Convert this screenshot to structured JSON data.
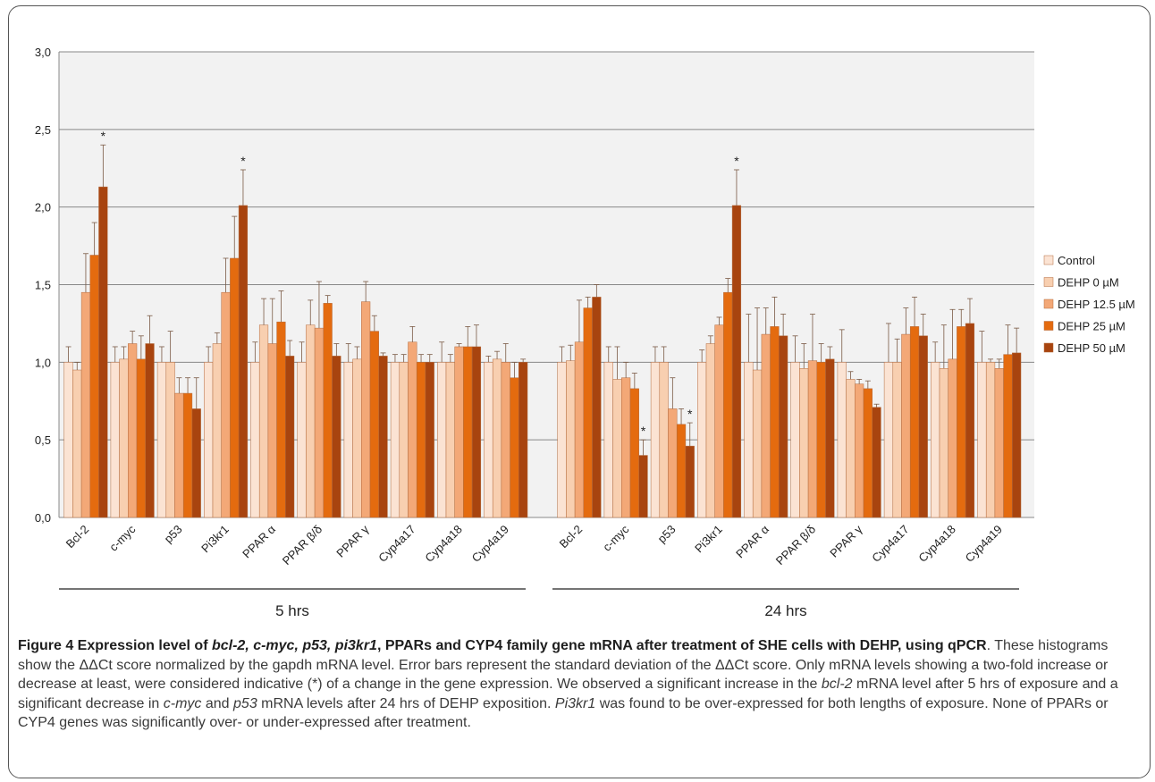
{
  "chart_data": {
    "type": "bar",
    "ylim": [
      0,
      3.0
    ],
    "yticks": [
      "0,0",
      "0,5",
      "1,0",
      "1,5",
      "2,0",
      "2,5",
      "3,0"
    ],
    "grid": true,
    "legend_position": "right",
    "series": [
      {
        "name": "Control",
        "color": "#fbe3d3"
      },
      {
        "name": "DEHP 0 µM",
        "color": "#f8cfb0"
      },
      {
        "name": "DEHP 12.5 µM",
        "color": "#f3a877"
      },
      {
        "name": "DEHP 25 µM",
        "color": "#e46b0f"
      },
      {
        "name": "DEHP 50 µM",
        "color": "#a8440f"
      }
    ],
    "groups": [
      {
        "label": "5 hrs",
        "categories": [
          "Bcl-2",
          "c-myc",
          "p53",
          "Pi3kr1",
          "PPAR α",
          "PPAR β/δ",
          "PPAR γ",
          "Cyp4a17",
          "Cyp4a18",
          "Cyp4a19"
        ],
        "values": [
          [
            1.0,
            0.95,
            1.45,
            1.69,
            2.13
          ],
          [
            1.0,
            1.02,
            1.12,
            1.02,
            1.12
          ],
          [
            1.0,
            1.0,
            0.8,
            0.8,
            0.7
          ],
          [
            1.0,
            1.12,
            1.45,
            1.67,
            2.01
          ],
          [
            1.0,
            1.24,
            1.12,
            1.26,
            1.04
          ],
          [
            1.0,
            1.24,
            1.22,
            1.38,
            1.04
          ],
          [
            1.0,
            1.02,
            1.39,
            1.2,
            1.04
          ],
          [
            1.0,
            1.0,
            1.13,
            1.0,
            1.0
          ],
          [
            1.0,
            1.0,
            1.1,
            1.1,
            1.1
          ],
          [
            1.0,
            1.02,
            1.0,
            0.9,
            1.0
          ]
        ],
        "errors": [
          [
            0.1,
            0.05,
            0.25,
            0.21,
            0.27
          ],
          [
            0.1,
            0.08,
            0.08,
            0.15,
            0.18
          ],
          [
            0.1,
            0.2,
            0.1,
            0.1,
            0.2
          ],
          [
            0.1,
            0.07,
            0.22,
            0.27,
            0.23
          ],
          [
            0.13,
            0.17,
            0.29,
            0.2,
            0.1
          ],
          [
            0.13,
            0.16,
            0.3,
            0.05,
            0.08
          ],
          [
            0.12,
            0.08,
            0.13,
            0.1,
            0.02
          ],
          [
            0.05,
            0.05,
            0.1,
            0.05,
            0.05
          ],
          [
            0.13,
            0.05,
            0.02,
            0.13,
            0.14
          ],
          [
            0.04,
            0.05,
            0.12,
            0.1,
            0.02
          ]
        ],
        "significance": [
          {
            "category": "Bcl-2",
            "series": "DEHP 50 µM",
            "label": "*"
          },
          {
            "category": "Pi3kr1",
            "series": "DEHP 50 µM",
            "label": "*"
          }
        ]
      },
      {
        "label": "24 hrs",
        "categories": [
          "Bcl-2",
          "c-myc",
          "p53",
          "Pi3kr1",
          "PPAR α",
          "PPAR β/δ",
          "PPAR γ",
          "Cyp4a17",
          "Cyp4a18",
          "Cyp4a19"
        ],
        "values": [
          [
            1.0,
            1.01,
            1.13,
            1.35,
            1.42
          ],
          [
            1.0,
            0.89,
            0.9,
            0.83,
            0.4
          ],
          [
            1.0,
            1.0,
            0.7,
            0.6,
            0.46
          ],
          [
            1.0,
            1.12,
            1.24,
            1.45,
            2.01
          ],
          [
            1.0,
            0.95,
            1.18,
            1.23,
            1.17
          ],
          [
            1.0,
            0.96,
            1.01,
            1.0,
            1.02
          ],
          [
            1.0,
            0.89,
            0.86,
            0.83,
            0.71
          ],
          [
            1.0,
            1.0,
            1.18,
            1.23,
            1.17
          ],
          [
            1.0,
            0.96,
            1.02,
            1.23,
            1.25
          ],
          [
            1.0,
            1.0,
            0.96,
            1.05,
            1.06
          ]
        ],
        "errors": [
          [
            0.1,
            0.1,
            0.27,
            0.07,
            0.08
          ],
          [
            0.1,
            0.21,
            0.1,
            0.1,
            0.1
          ],
          [
            0.1,
            0.1,
            0.2,
            0.1,
            0.15
          ],
          [
            0.08,
            0.05,
            0.05,
            0.09,
            0.23
          ],
          [
            0.31,
            0.4,
            0.17,
            0.19,
            0.14
          ],
          [
            0.17,
            0.16,
            0.3,
            0.12,
            0.08
          ],
          [
            0.21,
            0.05,
            0.03,
            0.05,
            0.02
          ],
          [
            0.25,
            0.15,
            0.17,
            0.19,
            0.14
          ],
          [
            0.13,
            0.28,
            0.32,
            0.11,
            0.16
          ],
          [
            0.2,
            0.02,
            0.06,
            0.19,
            0.16
          ]
        ],
        "significance": [
          {
            "category": "c-myc",
            "series": "DEHP 50 µM",
            "label": "*"
          },
          {
            "category": "p53",
            "series": "DEHP 50 µM",
            "label": "*"
          },
          {
            "category": "Pi3kr1",
            "series": "DEHP 50 µM",
            "label": "*"
          }
        ]
      }
    ]
  },
  "caption": {
    "label": "Figure 4",
    "title_parts": [
      {
        "text": " Expression level of ",
        "italic": false
      },
      {
        "text": "bcl-2, c-myc, p53, pi3kr1",
        "italic": true
      },
      {
        "text": ", PPARs and CYP4 family gene mRNA after treatment of SHE cells with DEHP, using qPCR",
        "italic": false
      }
    ],
    "body_parts": [
      {
        "text": ". These histograms show the ΔΔCt score normalized by the gapdh mRNA level. Error bars represent the standard deviation of the ΔΔCt score. Only mRNA levels showing a two-fold increase or decrease at least, were considered indicative (*) of a change in the gene expression. We observed a significant increase in the ",
        "italic": false
      },
      {
        "text": "bcl-2",
        "italic": true
      },
      {
        "text": " mRNA level after 5 hrs of exposure and a significant decrease in ",
        "italic": false
      },
      {
        "text": "c-myc",
        "italic": true
      },
      {
        "text": " and ",
        "italic": false
      },
      {
        "text": "p53",
        "italic": true
      },
      {
        "text": " mRNA levels after 24 hrs of DEHP exposition. ",
        "italic": false
      },
      {
        "text": "Pi3kr1",
        "italic": true
      },
      {
        "text": " was found to be over-expressed for both lengths of exposure. None of PPARs or CYP4 genes was significantly over- or under-expressed after treatment.",
        "italic": false
      }
    ]
  }
}
